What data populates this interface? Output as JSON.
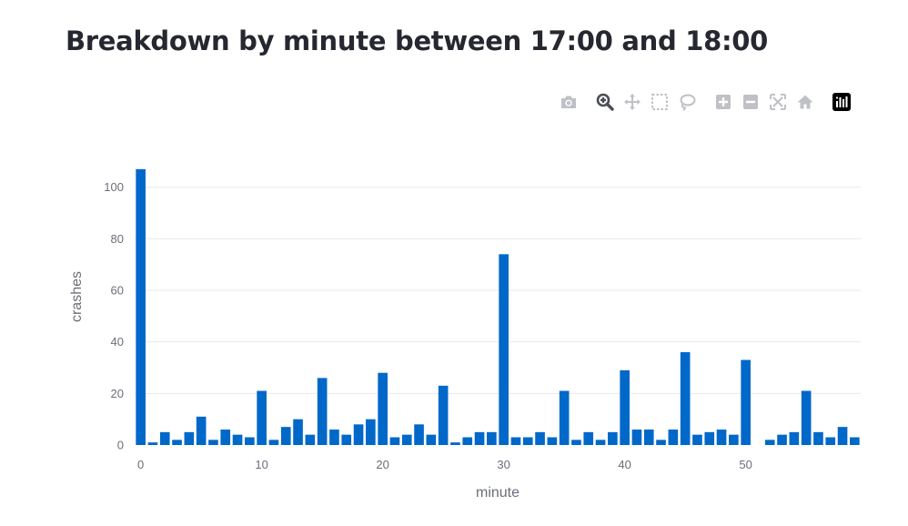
{
  "page": {
    "title": "Breakdown by minute between 17:00 and 18:00"
  },
  "modebar": [
    {
      "name": "camera-icon",
      "label": "Download plot as a png"
    },
    {
      "name": "zoom-icon",
      "label": "Zoom",
      "active": true
    },
    {
      "name": "pan-icon",
      "label": "Pan"
    },
    {
      "name": "box-select-icon",
      "label": "Box Select"
    },
    {
      "name": "lasso-select-icon",
      "label": "Lasso Select"
    },
    {
      "name": "zoom-in-icon",
      "label": "Zoom in"
    },
    {
      "name": "zoom-out-icon",
      "label": "Zoom out"
    },
    {
      "name": "autoscale-icon",
      "label": "Autoscale"
    },
    {
      "name": "reset-axes-icon",
      "label": "Reset axes"
    },
    {
      "name": "plotly-logo-icon",
      "label": "Produced with Plotly"
    }
  ],
  "colors": {
    "bar": "#0068c9",
    "grid": "#e8e8ec",
    "axis_text": "#6b6e7a",
    "icon": "#bfc1c6",
    "icon_active": "#4a4c55",
    "title": "#262730"
  },
  "chart_data": {
    "type": "bar",
    "xlabel": "minute",
    "ylabel": "crashes",
    "x": [
      0,
      1,
      2,
      3,
      4,
      5,
      6,
      7,
      8,
      9,
      10,
      11,
      12,
      13,
      14,
      15,
      16,
      17,
      18,
      19,
      20,
      21,
      22,
      23,
      24,
      25,
      26,
      27,
      28,
      29,
      30,
      31,
      32,
      33,
      34,
      35,
      36,
      37,
      38,
      39,
      40,
      41,
      42,
      43,
      44,
      45,
      46,
      47,
      48,
      49,
      50,
      51,
      52,
      53,
      54,
      55,
      56,
      57,
      58,
      59
    ],
    "values": [
      107,
      1,
      5,
      2,
      5,
      11,
      2,
      6,
      4,
      3,
      21,
      2,
      7,
      10,
      4,
      26,
      6,
      4,
      8,
      10,
      28,
      3,
      4,
      8,
      4,
      23,
      1,
      3,
      5,
      5,
      74,
      3,
      3,
      5,
      3,
      21,
      2,
      5,
      2,
      5,
      29,
      6,
      6,
      2,
      6,
      36,
      4,
      5,
      6,
      4,
      33,
      0,
      2,
      4,
      5,
      21,
      5,
      3,
      7,
      3
    ],
    "xlim": [
      -0.5,
      59.5
    ],
    "ylim": [
      0,
      112.6
    ],
    "xticks": [
      0,
      10,
      20,
      30,
      40,
      50
    ],
    "yticks": [
      0,
      20,
      40,
      60,
      80,
      100
    ],
    "grid": true,
    "legend": false
  }
}
